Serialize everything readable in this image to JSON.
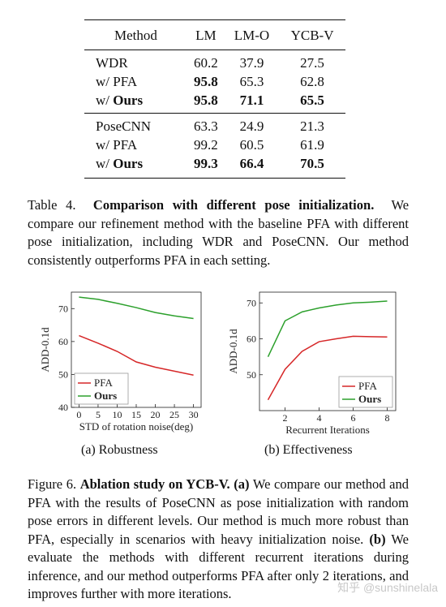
{
  "table": {
    "headers": [
      "Method",
      "LM",
      "LM-O",
      "YCB-V"
    ],
    "groups": [
      [
        {
          "method": "WDR",
          "method_bold": "",
          "values": [
            "60.2",
            "37.9",
            "27.5"
          ],
          "bold": [
            false,
            false,
            false
          ]
        },
        {
          "method": "w/ PFA",
          "method_bold": "",
          "values": [
            "95.8",
            "65.3",
            "62.8"
          ],
          "bold": [
            true,
            false,
            false
          ]
        },
        {
          "method": "w/ ",
          "method_bold": "Ours",
          "values": [
            "95.8",
            "71.1",
            "65.5"
          ],
          "bold": [
            true,
            true,
            true
          ]
        }
      ],
      [
        {
          "method": "PoseCNN",
          "method_bold": "",
          "values": [
            "63.3",
            "24.9",
            "21.3"
          ],
          "bold": [
            false,
            false,
            false
          ]
        },
        {
          "method": "w/ PFA",
          "method_bold": "",
          "values": [
            "99.2",
            "60.5",
            "61.9"
          ],
          "bold": [
            false,
            false,
            false
          ]
        },
        {
          "method": "w/ ",
          "method_bold": "Ours",
          "values": [
            "99.3",
            "66.4",
            "70.5"
          ],
          "bold": [
            true,
            true,
            true
          ]
        }
      ]
    ]
  },
  "table_caption": {
    "label": "Table 4.",
    "title": "Comparison with different pose initialization.",
    "text": "We compare our refinement method with the baseline PFA with different pose initialization, including WDR and PoseCNN. Our method consistently outperforms PFA in each setting."
  },
  "subfigure_labels": [
    "(a) Robustness",
    "(b) Effectiveness"
  ],
  "figure_caption": {
    "label": "Figure 6.",
    "title": "Ablation study on YCB-V.",
    "part_a_label": "(a)",
    "part_a_text": "We compare our method and PFA with the results of PoseCNN as pose initialization with random pose errors in different levels. Our method is much more robust than PFA, especially in scenarios with heavy initialization noise.",
    "part_b_label": "(b)",
    "part_b_text": "We evaluate the methods with different recurrent iterations during inference, and our method outperforms PFA after only 2 iterations, and improves further with more iterations."
  },
  "watermark": "知乎 @sunshinelala",
  "colors": {
    "pfa": "#d62728",
    "ours": "#2ca02c"
  },
  "chart_data": [
    {
      "type": "line",
      "title": "",
      "xlabel": "STD of rotation noise(deg)",
      "ylabel": "ADD-0.1d",
      "xlim": [
        -2,
        32
      ],
      "ylim": [
        40,
        75
      ],
      "xticks": [
        0,
        5,
        10,
        15,
        20,
        25,
        30
      ],
      "yticks": [
        40,
        50,
        60,
        70
      ],
      "legend": "bottom-left",
      "series": [
        {
          "name": "PFA",
          "color": "#d62728",
          "x": [
            0,
            5,
            10,
            15,
            20,
            25,
            30
          ],
          "y": [
            61.8,
            59.5,
            57.0,
            53.8,
            52.2,
            51.0,
            49.8
          ]
        },
        {
          "name": "Ours",
          "color": "#2ca02c",
          "x": [
            0,
            5,
            10,
            15,
            20,
            25,
            30
          ],
          "y": [
            73.5,
            72.8,
            71.6,
            70.3,
            68.8,
            67.8,
            67.0
          ]
        }
      ]
    },
    {
      "type": "line",
      "title": "",
      "xlabel": "Recurrent Iterations",
      "ylabel": "ADD-0.1d",
      "xlim": [
        0.5,
        8.5
      ],
      "ylim": [
        40,
        73
      ],
      "xticks": [
        2,
        4,
        6,
        8
      ],
      "yticks": [
        50,
        60,
        70
      ],
      "legend": "bottom-right",
      "series": [
        {
          "name": "PFA",
          "color": "#d62728",
          "x": [
            1,
            2,
            3,
            4,
            5,
            6,
            7,
            8
          ],
          "y": [
            43.0,
            51.5,
            56.5,
            59.2,
            60.0,
            60.7,
            60.6,
            60.5
          ]
        },
        {
          "name": "Ours",
          "color": "#2ca02c",
          "x": [
            1,
            2,
            3,
            4,
            5,
            6,
            7,
            8
          ],
          "y": [
            55.0,
            65.0,
            67.5,
            68.6,
            69.4,
            70.0,
            70.2,
            70.5
          ]
        }
      ]
    }
  ]
}
